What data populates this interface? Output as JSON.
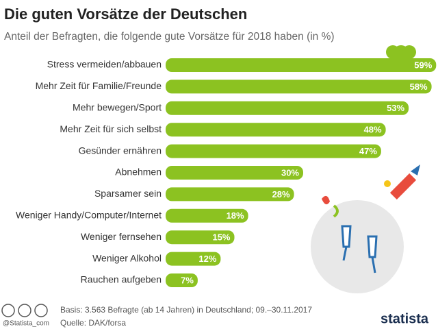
{
  "chart_data": {
    "type": "bar",
    "orientation": "horizontal",
    "title": "Die guten Vorsätze der Deutschen",
    "subtitle": "Anteil der Befragten, die folgende gute Vorsätze für 2018 haben (in %)",
    "categories": [
      "Stress vermeiden/abbauen",
      "Mehr Zeit für Familie/Freunde",
      "Mehr bewegen/Sport",
      "Mehr Zeit für sich selbst",
      "Gesünder ernähren",
      "Abnehmen",
      "Sparsamer sein",
      "Weniger Handy/Computer/Internet",
      "Weniger fernsehen",
      "Weniger Alkohol",
      "Rauchen aufgeben"
    ],
    "values": [
      59,
      58,
      53,
      48,
      47,
      30,
      28,
      18,
      15,
      12,
      7
    ],
    "value_labels": [
      "59%",
      "58%",
      "53%",
      "48%",
      "47%",
      "30%",
      "28%",
      "18%",
      "15%",
      "12%",
      "7%"
    ],
    "color": "#8cc221",
    "source_note": "Basis: 3.563 Befragte (ab 14 Jahren) in Deutschland; 09.–30.11.2017",
    "source": "Quelle: DAK/forsa",
    "handle": "@Statista_com",
    "brand": "statista"
  }
}
